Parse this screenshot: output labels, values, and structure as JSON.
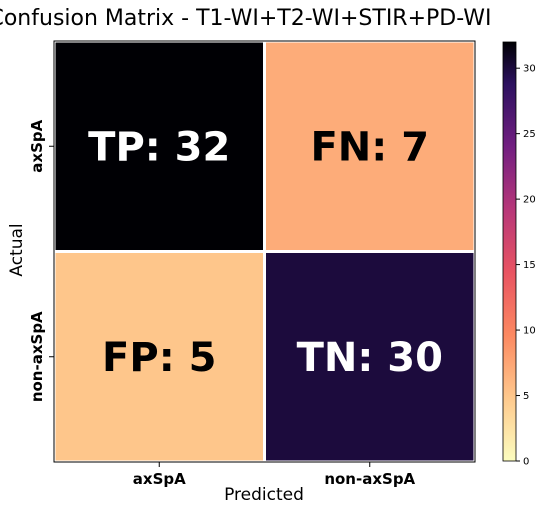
{
  "chart_data": {
    "type": "heatmap",
    "title": "Confusion Matrix - T1-WI+T2-WI+STIR+PD-WI",
    "xlabel": "Predicted",
    "ylabel": "Actual",
    "x_categories": [
      "axSpA",
      "non-axSpA"
    ],
    "y_categories": [
      "axSpA",
      "non-axSpA"
    ],
    "cells": [
      [
        {
          "tag": "TP",
          "value": 32,
          "text": "TP: 32"
        },
        {
          "tag": "FN",
          "value": 7,
          "text": "FN: 7"
        }
      ],
      [
        {
          "tag": "FP",
          "value": 5,
          "text": "FP: 5"
        },
        {
          "tag": "TN",
          "value": 30,
          "text": "TN: 30"
        }
      ]
    ],
    "colormap": "magma_r",
    "colorbar": {
      "range": [
        0,
        32
      ],
      "ticks": [
        "0",
        "5",
        "10",
        "15",
        "20",
        "25",
        "30"
      ],
      "tick_values": [
        0,
        5,
        10,
        15,
        20,
        25,
        30
      ]
    }
  }
}
